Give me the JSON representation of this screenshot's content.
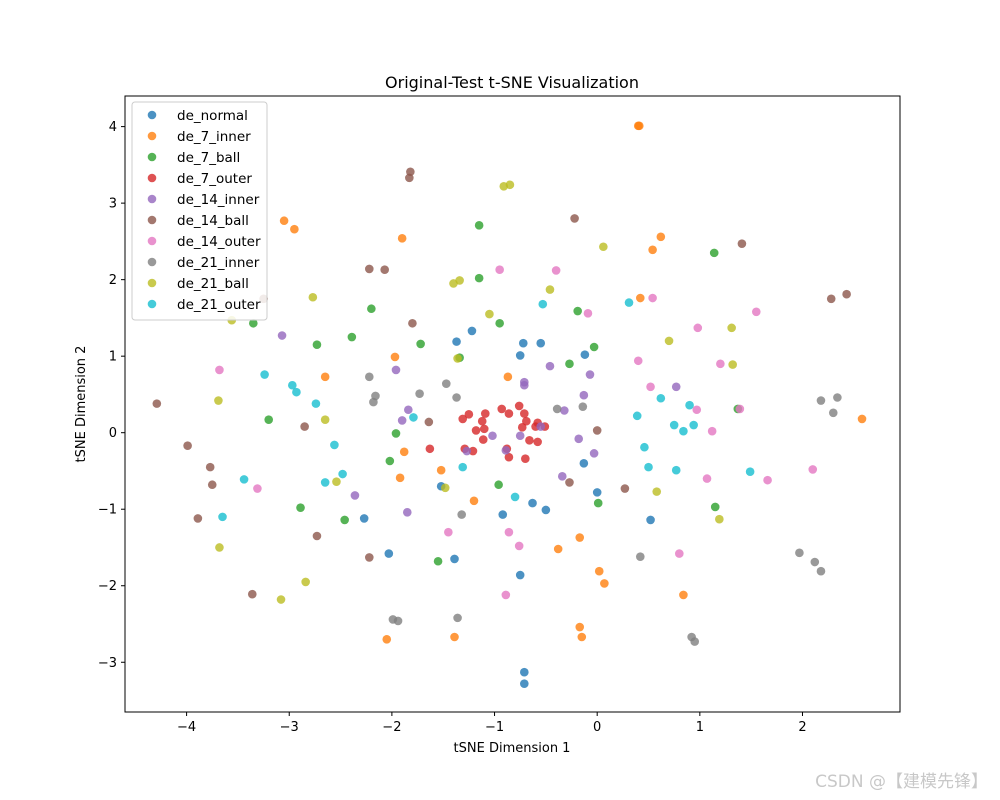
{
  "chart_data": {
    "type": "scatter",
    "title": "Original-Test t-SNE Visualization",
    "xlabel": "tSNE Dimension 1",
    "ylabel": "tSNE Dimension 2",
    "xlim": [
      -4.6,
      2.95
    ],
    "ylim": [
      -3.65,
      4.4
    ],
    "xticks": [
      -4,
      -3,
      -2,
      -1,
      0,
      1,
      2
    ],
    "yticks": [
      -3,
      -2,
      -1,
      0,
      1,
      2,
      3,
      4
    ],
    "xtick_labels": [
      "−4",
      "−3",
      "−2",
      "−1",
      "0",
      "1",
      "2"
    ],
    "ytick_labels": [
      "−3",
      "−2",
      "−1",
      "0",
      "1",
      "2",
      "3",
      "4"
    ],
    "legend_position": "top-left",
    "grid": false,
    "series": [
      {
        "name": "de_normal",
        "color": "#1f77b4",
        "points": [
          [
            -1.37,
            1.19
          ],
          [
            -1.22,
            1.33
          ],
          [
            -0.72,
            1.17
          ],
          [
            -0.55,
            1.17
          ],
          [
            -0.75,
            1.01
          ],
          [
            -0.12,
            1.02
          ],
          [
            -0.13,
            -0.4
          ],
          [
            0.0,
            -0.78
          ],
          [
            -0.63,
            -0.92
          ],
          [
            -0.5,
            -1.01
          ],
          [
            -0.92,
            -1.07
          ],
          [
            -1.52,
            -0.7
          ],
          [
            -2.27,
            -1.12
          ],
          [
            -2.03,
            -1.58
          ],
          [
            -1.39,
            -1.65
          ],
          [
            -0.75,
            -1.86
          ],
          [
            -0.71,
            -3.13
          ],
          [
            -0.71,
            -3.28
          ],
          [
            0.52,
            -1.14
          ]
        ]
      },
      {
        "name": "de_7_inner",
        "color": "#ff7f0e",
        "points": [
          [
            0.4,
            4.01
          ],
          [
            0.41,
            4.01
          ],
          [
            -3.05,
            2.77
          ],
          [
            -2.95,
            2.66
          ],
          [
            -1.9,
            2.54
          ],
          [
            0.62,
            2.56
          ],
          [
            0.54,
            2.39
          ],
          [
            -1.97,
            0.99
          ],
          [
            -2.65,
            0.73
          ],
          [
            -0.87,
            0.73
          ],
          [
            -1.88,
            -0.25
          ],
          [
            -1.92,
            -0.59
          ],
          [
            -1.52,
            -0.49
          ],
          [
            -1.2,
            -0.89
          ],
          [
            -0.38,
            -1.52
          ],
          [
            -0.17,
            -1.37
          ],
          [
            0.02,
            -1.81
          ],
          [
            0.07,
            -1.97
          ],
          [
            0.84,
            -2.12
          ],
          [
            -2.05,
            -2.7
          ],
          [
            -1.39,
            -2.67
          ],
          [
            -0.17,
            -2.54
          ],
          [
            -0.15,
            -2.67
          ],
          [
            2.58,
            0.18
          ],
          [
            0.42,
            1.76
          ]
        ]
      },
      {
        "name": "de_7_ball",
        "color": "#2ca02c",
        "points": [
          [
            -1.15,
            2.71
          ],
          [
            -1.15,
            2.02
          ],
          [
            -2.2,
            1.62
          ],
          [
            -3.35,
            1.43
          ],
          [
            -2.73,
            1.15
          ],
          [
            -2.39,
            1.25
          ],
          [
            -1.72,
            1.16
          ],
          [
            -1.34,
            0.98
          ],
          [
            -0.95,
            1.43
          ],
          [
            -0.19,
            1.59
          ],
          [
            -0.27,
            0.9
          ],
          [
            -0.03,
            1.12
          ],
          [
            -3.2,
            0.17
          ],
          [
            -1.96,
            -0.01
          ],
          [
            -2.02,
            -0.37
          ],
          [
            -2.89,
            -0.98
          ],
          [
            -2.46,
            -1.14
          ],
          [
            -1.55,
            -1.68
          ],
          [
            -0.96,
            -0.68
          ],
          [
            0.01,
            -0.92
          ],
          [
            1.14,
            2.35
          ],
          [
            1.37,
            0.31
          ],
          [
            1.15,
            -0.97
          ]
        ]
      },
      {
        "name": "de_7_outer",
        "color": "#d62728",
        "points": [
          [
            -1.31,
            0.18
          ],
          [
            -1.25,
            0.24
          ],
          [
            -1.12,
            0.15
          ],
          [
            -1.09,
            0.25
          ],
          [
            -1.18,
            0.03
          ],
          [
            -1.1,
            0.05
          ],
          [
            -1.11,
            -0.09
          ],
          [
            -1.29,
            -0.21
          ],
          [
            -0.93,
            0.31
          ],
          [
            -0.86,
            0.25
          ],
          [
            -0.76,
            0.35
          ],
          [
            -0.71,
            0.25
          ],
          [
            -0.69,
            0.15
          ],
          [
            -0.73,
            0.07
          ],
          [
            -0.66,
            -0.1
          ],
          [
            -0.6,
            0.08
          ],
          [
            -0.58,
            -0.12
          ],
          [
            -0.51,
            0.08
          ],
          [
            -0.58,
            0.13
          ],
          [
            -0.88,
            -0.21
          ],
          [
            -0.86,
            -0.32
          ],
          [
            -0.7,
            -0.34
          ],
          [
            -1.21,
            -0.24
          ],
          [
            -1.63,
            -0.21
          ]
        ]
      },
      {
        "name": "de_14_inner",
        "color": "#9467bd",
        "points": [
          [
            -3.07,
            1.27
          ],
          [
            -1.96,
            0.82
          ],
          [
            -1.84,
            0.3
          ],
          [
            -1.9,
            0.16
          ],
          [
            -1.27,
            -0.24
          ],
          [
            -1.02,
            -0.04
          ],
          [
            -0.89,
            -0.23
          ],
          [
            -0.75,
            -0.04
          ],
          [
            -0.71,
            0.62
          ],
          [
            -0.71,
            0.66
          ],
          [
            -0.46,
            0.87
          ],
          [
            -0.32,
            0.29
          ],
          [
            -0.13,
            0.49
          ],
          [
            -0.07,
            0.76
          ],
          [
            -0.18,
            -0.08
          ],
          [
            -0.03,
            -0.27
          ],
          [
            -0.34,
            -0.57
          ],
          [
            -1.85,
            -1.04
          ],
          [
            -2.36,
            -0.82
          ],
          [
            0.77,
            0.6
          ],
          [
            -0.55,
            0.08
          ]
        ]
      },
      {
        "name": "de_14_ball",
        "color": "#8c564b",
        "points": [
          [
            -1.82,
            3.41
          ],
          [
            -1.83,
            3.33
          ],
          [
            -0.22,
            2.8
          ],
          [
            1.41,
            2.47
          ],
          [
            -2.22,
            2.14
          ],
          [
            -2.07,
            2.13
          ],
          [
            -3.25,
            1.75
          ],
          [
            -1.8,
            1.43
          ],
          [
            -4.29,
            0.38
          ],
          [
            -1.64,
            0.14
          ],
          [
            -2.85,
            0.08
          ],
          [
            -3.99,
            -0.17
          ],
          [
            -3.77,
            -0.45
          ],
          [
            -3.75,
            -0.68
          ],
          [
            -3.89,
            -1.12
          ],
          [
            -2.73,
            -1.35
          ],
          [
            -2.22,
            -1.63
          ],
          [
            -3.36,
            -2.11
          ],
          [
            -0.27,
            -0.65
          ],
          [
            0.27,
            -0.73
          ],
          [
            0.0,
            0.03
          ],
          [
            2.28,
            1.75
          ],
          [
            2.43,
            1.81
          ]
        ]
      },
      {
        "name": "de_14_outer",
        "color": "#e377c2",
        "points": [
          [
            -0.95,
            2.13
          ],
          [
            -0.4,
            2.12
          ],
          [
            -0.09,
            1.56
          ],
          [
            0.54,
            1.76
          ],
          [
            0.98,
            1.37
          ],
          [
            1.55,
            1.58
          ],
          [
            0.4,
            0.94
          ],
          [
            0.52,
            0.6
          ],
          [
            1.2,
            0.9
          ],
          [
            0.97,
            0.3
          ],
          [
            1.12,
            0.02
          ],
          [
            1.39,
            0.31
          ],
          [
            -3.68,
            0.82
          ],
          [
            -3.31,
            -0.73
          ],
          [
            -1.45,
            -1.3
          ],
          [
            -0.86,
            -1.3
          ],
          [
            -0.76,
            -1.48
          ],
          [
            -0.89,
            -2.12
          ],
          [
            0.8,
            -1.58
          ],
          [
            1.07,
            -0.6
          ],
          [
            1.66,
            -0.62
          ],
          [
            2.1,
            -0.48
          ]
        ]
      },
      {
        "name": "de_21_inner",
        "color": "#7f7f7f",
        "points": [
          [
            -2.22,
            0.73
          ],
          [
            -2.16,
            0.48
          ],
          [
            -2.18,
            0.4
          ],
          [
            -1.73,
            0.51
          ],
          [
            -1.47,
            0.64
          ],
          [
            -1.37,
            0.46
          ],
          [
            -0.39,
            0.31
          ],
          [
            -0.14,
            0.34
          ],
          [
            -1.32,
            -1.07
          ],
          [
            -1.36,
            -2.42
          ],
          [
            -1.99,
            -2.44
          ],
          [
            -1.94,
            -2.46
          ],
          [
            0.42,
            -1.62
          ],
          [
            0.92,
            -2.67
          ],
          [
            0.95,
            -2.73
          ],
          [
            1.97,
            -1.57
          ],
          [
            2.12,
            -1.69
          ],
          [
            2.18,
            -1.81
          ],
          [
            2.18,
            0.42
          ],
          [
            2.3,
            0.26
          ],
          [
            2.34,
            0.46
          ]
        ]
      },
      {
        "name": "de_21_ball",
        "color": "#bcbd22",
        "points": [
          [
            -0.91,
            3.22
          ],
          [
            -0.85,
            3.24
          ],
          [
            0.06,
            2.43
          ],
          [
            -1.34,
            1.99
          ],
          [
            -1.4,
            1.95
          ],
          [
            -0.46,
            1.87
          ],
          [
            -2.77,
            1.77
          ],
          [
            -3.56,
            1.47
          ],
          [
            -1.05,
            1.55
          ],
          [
            0.7,
            1.2
          ],
          [
            1.31,
            1.37
          ],
          [
            1.32,
            0.89
          ],
          [
            -1.36,
            0.97
          ],
          [
            -3.69,
            0.42
          ],
          [
            -2.65,
            0.17
          ],
          [
            -2.54,
            -0.64
          ],
          [
            -1.48,
            -0.72
          ],
          [
            -3.68,
            -1.5
          ],
          [
            -2.84,
            -1.95
          ],
          [
            -3.08,
            -2.18
          ],
          [
            0.58,
            -0.77
          ],
          [
            1.19,
            -1.13
          ]
        ]
      },
      {
        "name": "de_21_outer",
        "color": "#17becf",
        "points": [
          [
            -0.53,
            1.68
          ],
          [
            0.31,
            1.7
          ],
          [
            -3.24,
            0.76
          ],
          [
            -2.97,
            0.62
          ],
          [
            -2.93,
            0.53
          ],
          [
            -2.74,
            0.38
          ],
          [
            -1.79,
            0.2
          ],
          [
            -2.56,
            -0.16
          ],
          [
            -2.48,
            -0.54
          ],
          [
            -2.65,
            -0.65
          ],
          [
            -3.44,
            -0.61
          ],
          [
            -3.65,
            -1.1
          ],
          [
            -1.31,
            -0.45
          ],
          [
            -0.8,
            -0.84
          ],
          [
            0.39,
            0.22
          ],
          [
            0.62,
            0.45
          ],
          [
            0.75,
            0.1
          ],
          [
            0.84,
            0.02
          ],
          [
            0.9,
            0.36
          ],
          [
            0.94,
            0.1
          ],
          [
            0.46,
            -0.19
          ],
          [
            0.5,
            -0.45
          ],
          [
            0.77,
            -0.49
          ],
          [
            1.49,
            -0.51
          ]
        ]
      }
    ]
  },
  "watermark": "CSDN @【建模先锋】"
}
